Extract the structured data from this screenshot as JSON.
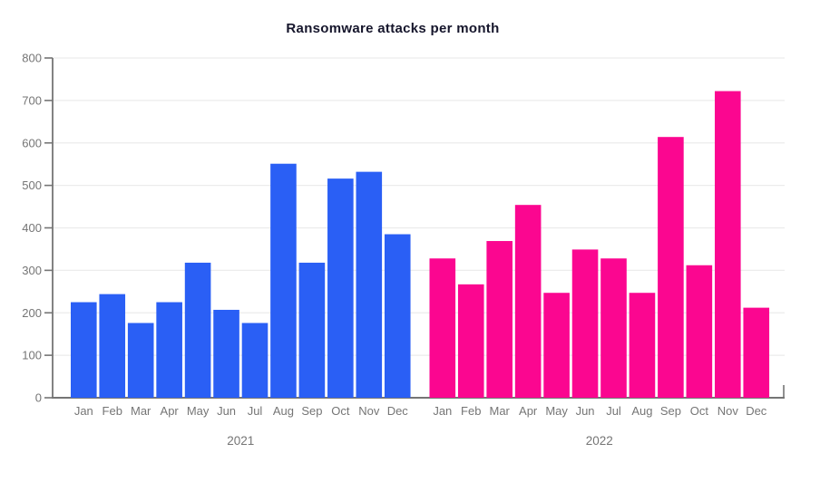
{
  "chart_data": {
    "type": "bar",
    "title": "Ransomware attacks per month",
    "categories": [
      "Jan",
      "Feb",
      "Mar",
      "Apr",
      "May",
      "Jun",
      "Jul",
      "Aug",
      "Sep",
      "Oct",
      "Nov",
      "Dec"
    ],
    "series": [
      {
        "name": "2021",
        "color": "#2A5FF5",
        "values": [
          225,
          244,
          176,
          225,
          318,
          207,
          176,
          551,
          318,
          516,
          532,
          385
        ]
      },
      {
        "name": "2022",
        "color": "#FB0690",
        "values": [
          328,
          267,
          369,
          454,
          247,
          349,
          328,
          247,
          614,
          312,
          722,
          212
        ]
      }
    ],
    "year_labels": [
      "2021",
      "2022"
    ],
    "ylim": [
      0,
      800
    ],
    "ytick_step": 100,
    "yticks": [
      "0",
      "100",
      "200",
      "300",
      "400",
      "500",
      "600",
      "700",
      "800"
    ],
    "grid": true,
    "legend": "none",
    "colors": {
      "axis": "#757575",
      "tick_label": "#757575",
      "gridline": "#ececec",
      "title": "#15152b",
      "background": "#ffffff"
    }
  }
}
